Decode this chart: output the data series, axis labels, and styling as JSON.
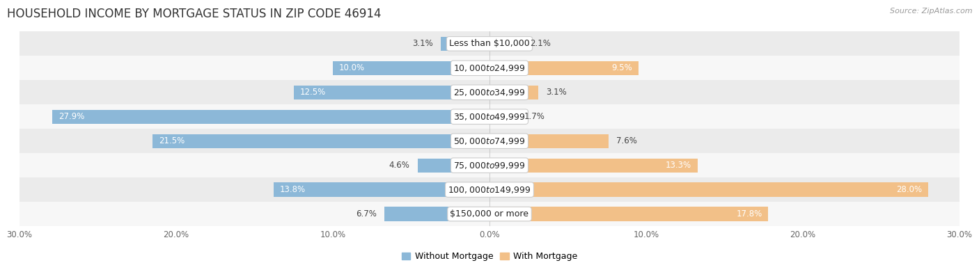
{
  "title": "HOUSEHOLD INCOME BY MORTGAGE STATUS IN ZIP CODE 46914",
  "source": "Source: ZipAtlas.com",
  "categories": [
    "Less than $10,000",
    "$10,000 to $24,999",
    "$25,000 to $34,999",
    "$35,000 to $49,999",
    "$50,000 to $74,999",
    "$75,000 to $99,999",
    "$100,000 to $149,999",
    "$150,000 or more"
  ],
  "without_mortgage": [
    3.1,
    10.0,
    12.5,
    27.9,
    21.5,
    4.6,
    13.8,
    6.7
  ],
  "with_mortgage": [
    2.1,
    9.5,
    3.1,
    1.7,
    7.6,
    13.3,
    28.0,
    17.8
  ],
  "color_without": "#8CB8D8",
  "color_with": "#F2C088",
  "row_colors": [
    "#EBEBEB",
    "#F7F7F7",
    "#EBEBEB",
    "#F7F7F7",
    "#EBEBEB",
    "#F7F7F7",
    "#EBEBEB",
    "#F7F7F7"
  ],
  "xlim": 30.0,
  "bar_height": 0.58,
  "title_fontsize": 12,
  "label_fontsize": 8.5,
  "category_fontsize": 9,
  "tick_fontsize": 8.5,
  "legend_fontsize": 9,
  "tick_vals": [
    -30,
    -20,
    -10,
    0,
    10,
    20,
    30
  ],
  "label_threshold_inside": 8.0
}
